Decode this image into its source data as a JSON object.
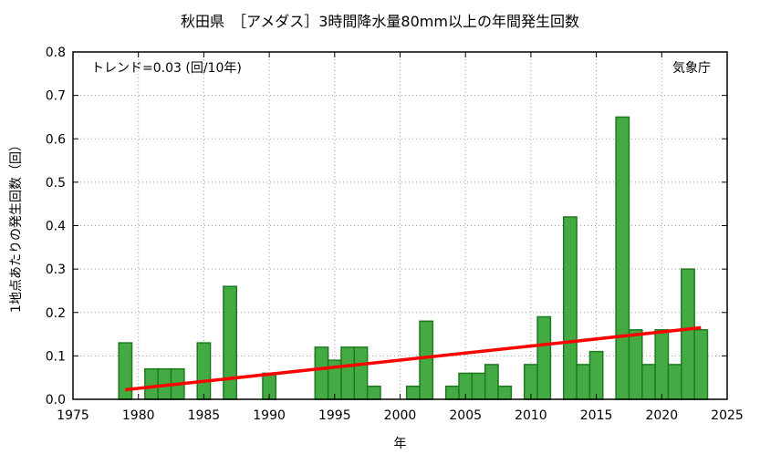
{
  "chart_data": {
    "type": "bar",
    "title": "秋田県　［アメダス］3時間降水量80mm以上の年間発生回数",
    "xlabel": "年",
    "ylabel": "1地点あたりの発生回数（回）",
    "xlim": [
      1975,
      2025
    ],
    "ylim": [
      0,
      0.8
    ],
    "xticks": [
      "1975",
      "1980",
      "1985",
      "1990",
      "1995",
      "2000",
      "2005",
      "2010",
      "2015",
      "2020",
      "2025"
    ],
    "yticks": [
      "0.0",
      "0.1",
      "0.2",
      "0.3",
      "0.4",
      "0.5",
      "0.6",
      "0.7",
      "0.8"
    ],
    "grid": true,
    "bar_color": "#44aa44",
    "bar_edge_color": "#1f7a1f",
    "trend_color": "#ff0000",
    "trend_text": "トレンド=0.03 (回/10年)",
    "source_text": "気象庁",
    "x": [
      1979,
      1981,
      1982,
      1983,
      1985,
      1987,
      1990,
      1994,
      1995,
      1996,
      1997,
      1998,
      2001,
      2002,
      2004,
      2005,
      2006,
      2007,
      2008,
      2010,
      2011,
      2013,
      2014,
      2015,
      2017,
      2018,
      2019,
      2020,
      2021,
      2022,
      2023
    ],
    "values": [
      0.13,
      0.07,
      0.07,
      0.07,
      0.13,
      0.26,
      0.06,
      0.12,
      0.09,
      0.12,
      0.12,
      0.03,
      0.03,
      0.18,
      0.03,
      0.06,
      0.06,
      0.08,
      0.03,
      0.08,
      0.19,
      0.42,
      0.08,
      0.11,
      0.65,
      0.16,
      0.08,
      0.16,
      0.08,
      0.3,
      0.16
    ],
    "trend": {
      "x": [
        1979,
        2023
      ],
      "y": [
        0.022,
        0.165
      ]
    }
  }
}
